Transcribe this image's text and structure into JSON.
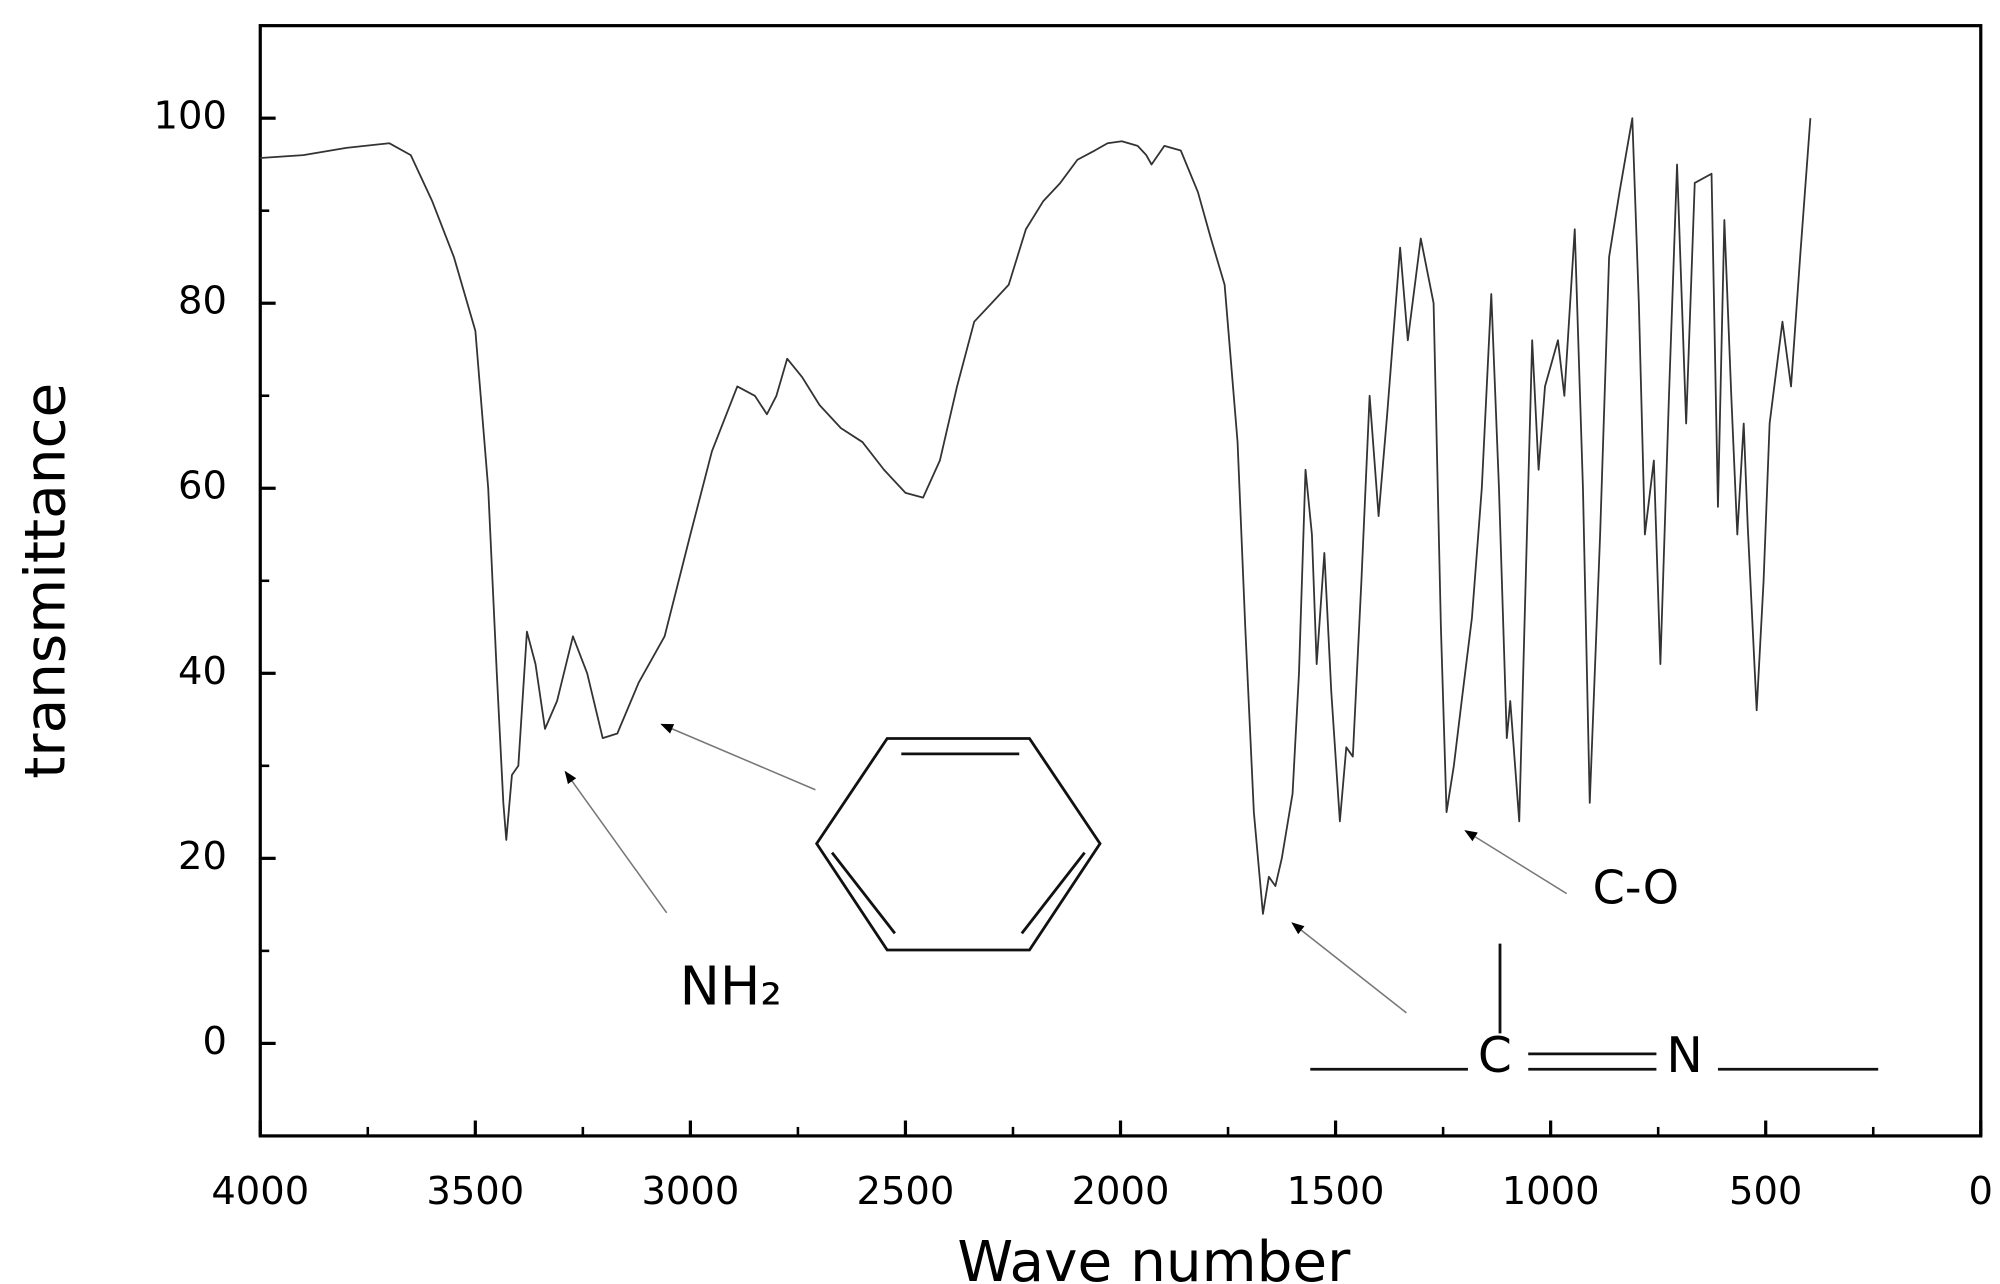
{
  "chart_data": {
    "type": "line",
    "xlabel": "Wave number",
    "ylabel": "transmittance",
    "xlim": [
      4000,
      0
    ],
    "ylim": [
      -10,
      110
    ],
    "xticks": [
      4000,
      3500,
      3000,
      2500,
      2000,
      1500,
      1000,
      500,
      0
    ],
    "yticks": [
      0,
      20,
      40,
      60,
      80,
      100
    ],
    "xminorticks": [
      3750,
      3250,
      2750,
      2250,
      1750,
      1250,
      750,
      250
    ],
    "yminorticks": [
      -10,
      10,
      30,
      50,
      70,
      90,
      110
    ],
    "series": [
      {
        "color": "#333333",
        "x": [
          4000,
          3900,
          3800,
          3700,
          3650,
          3600,
          3550,
          3500,
          3470,
          3450,
          3435,
          3428,
          3415,
          3400,
          3380,
          3360,
          3338,
          3310,
          3273,
          3240,
          3204,
          3170,
          3120,
          3060,
          3000,
          2950,
          2891,
          2850,
          2822,
          2800,
          2775,
          2740,
          2700,
          2650,
          2600,
          2550,
          2500,
          2459,
          2420,
          2380,
          2340,
          2300,
          2260,
          2220,
          2180,
          2140,
          2100,
          2060,
          2030,
          1997,
          1960,
          1940,
          1928,
          1898,
          1860,
          1820,
          1790,
          1758,
          1728,
          1710,
          1690,
          1669,
          1655,
          1640,
          1625,
          1600,
          1585,
          1570,
          1555,
          1544,
          1526,
          1510,
          1490,
          1475,
          1460,
          1440,
          1421,
          1400,
          1380,
          1350,
          1332,
          1302,
          1272,
          1255,
          1242,
          1225,
          1207,
          1183,
          1160,
          1138,
          1120,
          1102,
          1094,
          1073,
          1055,
          1043,
          1028,
          1013,
          983,
          968,
          944,
          925,
          909,
          885,
          864,
          840,
          810,
          795,
          781,
          760,
          745,
          725,
          706,
          685,
          665,
          626,
          611,
          596,
          580,
          566,
          551,
          542,
          521,
          505,
          491,
          461,
          441,
          420,
          396
        ],
        "values": [
          95.7,
          96,
          96.8,
          97.3,
          96,
          91,
          85,
          77,
          60,
          40,
          26,
          22,
          29,
          30,
          44.5,
          41,
          34,
          37,
          44,
          40,
          33,
          33.5,
          39,
          44,
          55,
          64,
          71,
          70,
          68,
          70,
          74,
          72,
          69,
          66.5,
          65,
          62,
          59.5,
          59,
          63,
          71,
          78,
          80,
          82,
          88,
          91,
          93,
          95.5,
          96.5,
          97.3,
          97.5,
          97,
          96,
          95,
          97,
          96.5,
          92,
          87,
          82,
          65,
          45,
          25,
          14,
          18,
          17,
          20,
          27,
          40,
          62,
          55,
          41,
          53,
          38,
          24,
          32,
          31,
          50,
          70,
          57,
          68,
          86,
          76,
          87,
          80,
          45,
          25,
          30,
          37,
          46,
          60,
          81,
          60,
          33,
          37,
          24,
          55,
          76,
          62,
          71,
          76,
          70,
          88,
          60,
          26,
          55,
          85,
          92,
          100,
          80,
          55,
          63,
          41,
          70,
          95,
          67,
          93,
          94,
          58,
          89,
          70,
          55,
          67,
          56,
          36,
          50,
          67,
          78,
          71,
          85,
          100
        ]
      }
    ],
    "annotations": [
      "NH₂",
      "C-O"
    ],
    "structure_labels": [
      "C",
      "N"
    ]
  }
}
